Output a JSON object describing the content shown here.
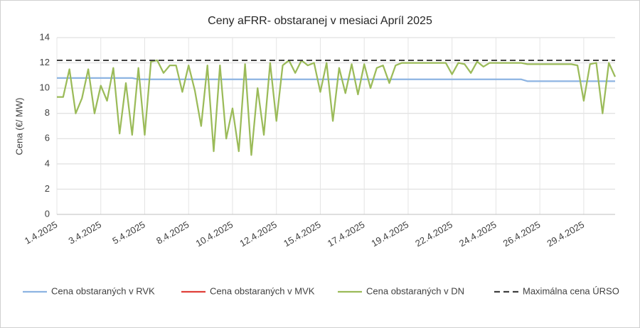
{
  "chart_data": {
    "type": "line",
    "title": "Ceny aFRR- obstaranej v mesiaci Apríl 2025",
    "y_label": "Cena (€/ MW)",
    "ylim": [
      0,
      14
    ],
    "yticks": [
      0,
      2,
      4,
      6,
      8,
      10,
      12,
      14
    ],
    "grid": true,
    "legend": "bottom",
    "categories": [
      "1.4.2025",
      null,
      null,
      null,
      null,
      null,
      null,
      "3.4.2025",
      null,
      null,
      null,
      null,
      null,
      null,
      "5.4.2025",
      null,
      null,
      null,
      null,
      null,
      null,
      "8.4.2025",
      null,
      null,
      null,
      null,
      null,
      null,
      "10.4.2025",
      null,
      null,
      null,
      null,
      null,
      null,
      "12.4.2025",
      null,
      null,
      null,
      null,
      null,
      null,
      "15.4.2025",
      null,
      null,
      null,
      null,
      null,
      null,
      "17.4.2025",
      null,
      null,
      null,
      null,
      null,
      null,
      "19.4.2025",
      null,
      null,
      null,
      null,
      null,
      null,
      "22.4.2025",
      null,
      null,
      null,
      null,
      null,
      null,
      "24.4.2025",
      null,
      null,
      null,
      null,
      null,
      null,
      "26.4.2025",
      null,
      null,
      null,
      null,
      null,
      null,
      "29.4.2025",
      null,
      null,
      null,
      null,
      null
    ],
    "series": [
      {
        "name": "Cena obstaraných v RVK",
        "color": "#8db4e2",
        "dashed": false,
        "values": [
          10.8,
          10.8,
          10.8,
          10.8,
          10.8,
          10.8,
          10.8,
          10.8,
          10.8,
          10.8,
          10.8,
          10.8,
          10.8,
          10.7,
          10.7,
          10.7,
          10.7,
          10.7,
          10.7,
          10.7,
          10.7,
          10.7,
          10.7,
          10.7,
          10.7,
          10.7,
          10.7,
          10.7,
          10.7,
          10.7,
          10.7,
          10.7,
          10.7,
          10.7,
          10.7,
          10.7,
          10.7,
          10.7,
          10.7,
          10.7,
          10.7,
          10.7,
          10.7,
          10.7,
          10.7,
          10.7,
          10.7,
          10.7,
          10.7,
          10.7,
          10.7,
          10.7,
          10.7,
          10.7,
          10.7,
          10.7,
          10.7,
          10.7,
          10.7,
          10.7,
          10.7,
          10.7,
          10.7,
          10.7,
          10.7,
          10.7,
          10.7,
          10.7,
          10.7,
          10.7,
          10.7,
          10.7,
          10.7,
          10.7,
          10.7,
          10.55,
          10.55,
          10.55,
          10.55,
          10.55,
          10.55,
          10.55,
          10.55,
          10.55,
          10.55,
          10.55,
          10.55,
          10.55,
          10.55,
          10.55
        ]
      },
      {
        "name": "Cena obstaraných v MVK",
        "color": "#e0403a",
        "dashed": false,
        "values": [
          null,
          null,
          null,
          null,
          null,
          null,
          null,
          null,
          null,
          null,
          null,
          null,
          null,
          null,
          null,
          null,
          null,
          null,
          null,
          null,
          null,
          null,
          null,
          null,
          null,
          null,
          null,
          null,
          null,
          null,
          null,
          null,
          null,
          null,
          null,
          null,
          null,
          null,
          null,
          null,
          null,
          null,
          null,
          null,
          null,
          null,
          null,
          null,
          null,
          null,
          null,
          null,
          null,
          null,
          null,
          null,
          null,
          null,
          null,
          null,
          null,
          null,
          null,
          null,
          null,
          null,
          null,
          null,
          null,
          null,
          null,
          null,
          null,
          null,
          null,
          null,
          null,
          null,
          null,
          null,
          null,
          null,
          null,
          null,
          null,
          null,
          null,
          null,
          null,
          null
        ]
      },
      {
        "name": "Cena obstaraných v DN",
        "color": "#9bbb59",
        "dashed": false,
        "values": [
          9.3,
          9.3,
          11.5,
          8,
          9.2,
          11.5,
          8,
          10.2,
          9,
          11.6,
          6.4,
          10.4,
          6.3,
          11.6,
          6.3,
          12.1,
          12.2,
          11.2,
          11.8,
          11.8,
          9.7,
          11.8,
          9.8,
          7,
          11.8,
          5,
          11.8,
          6,
          8.4,
          5,
          11.9,
          4.7,
          10,
          6.3,
          12,
          7.4,
          11.8,
          12.2,
          11.2,
          12.2,
          11.8,
          12,
          9.7,
          12,
          7.4,
          11.6,
          9.6,
          11.9,
          9.5,
          11.9,
          10,
          11.6,
          11.8,
          10.4,
          11.8,
          12,
          12,
          12,
          12,
          12,
          12,
          12,
          12,
          11.1,
          12,
          11.9,
          11.2,
          12.1,
          11.7,
          12,
          12,
          12,
          12,
          12,
          12,
          11.9,
          11.9,
          11.9,
          11.9,
          11.9,
          11.9,
          11.9,
          11.9,
          11.8,
          9,
          11.9,
          12,
          8,
          12,
          10.9
        ]
      },
      {
        "name": "Maximálna cena ÚRSO",
        "color": "#404040",
        "dashed": true,
        "values": [
          12.2,
          12.2,
          12.2,
          12.2,
          12.2,
          12.2,
          12.2,
          12.2,
          12.2,
          12.2,
          12.2,
          12.2,
          12.2,
          12.2,
          12.2,
          12.2,
          12.2,
          12.2,
          12.2,
          12.2,
          12.2,
          12.2,
          12.2,
          12.2,
          12.2,
          12.2,
          12.2,
          12.2,
          12.2,
          12.2,
          12.2,
          12.2,
          12.2,
          12.2,
          12.2,
          12.2,
          12.2,
          12.2,
          12.2,
          12.2,
          12.2,
          12.2,
          12.2,
          12.2,
          12.2,
          12.2,
          12.2,
          12.2,
          12.2,
          12.2,
          12.2,
          12.2,
          12.2,
          12.2,
          12.2,
          12.2,
          12.2,
          12.2,
          12.2,
          12.2,
          12.2,
          12.2,
          12.2,
          12.2,
          12.2,
          12.2,
          12.2,
          12.2,
          12.2,
          12.2,
          12.2,
          12.2,
          12.2,
          12.2,
          12.2,
          12.2,
          12.2,
          12.2,
          12.2,
          12.2,
          12.2,
          12.2,
          12.2,
          12.2,
          12.2,
          12.2,
          12.2,
          12.2,
          12.2,
          12.2
        ]
      }
    ]
  }
}
